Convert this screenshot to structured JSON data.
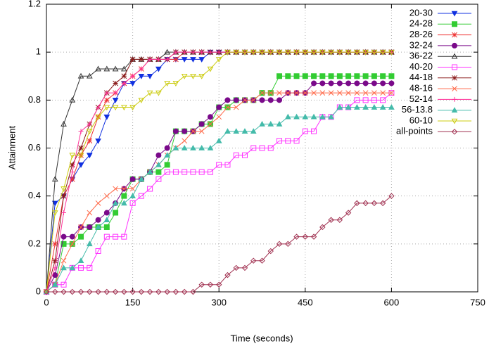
{
  "chart_data": {
    "type": "line",
    "xlabel": "Time (seconds)",
    "ylabel": "Attainment",
    "xlim": [
      0,
      750
    ],
    "ylim": [
      0,
      1.2
    ],
    "xticks": [
      0,
      150,
      300,
      450,
      600,
      750
    ],
    "yticks": [
      0,
      0.2,
      0.4,
      0.6,
      0.8,
      1,
      1.2
    ],
    "grid": true,
    "legend": "top-right",
    "x": [
      0,
      15,
      30,
      45,
      60,
      75,
      90,
      105,
      120,
      135,
      150,
      165,
      180,
      195,
      210,
      225,
      240,
      255,
      270,
      285,
      300,
      315,
      330,
      345,
      360,
      375,
      390,
      405,
      420,
      435,
      450,
      465,
      480,
      495,
      510,
      525,
      540,
      555,
      570,
      585,
      600
    ],
    "series": [
      {
        "name": "20-30",
        "color": "#1030e0",
        "marker": "triangle-down-filled",
        "values": [
          0,
          0.37,
          0.4,
          0.47,
          0.53,
          0.57,
          0.63,
          0.73,
          0.8,
          0.87,
          0.87,
          0.9,
          0.9,
          0.93,
          0.97,
          0.97,
          0.97,
          0.97,
          0.97,
          1,
          1,
          1,
          1,
          1,
          1,
          1,
          1,
          1,
          1,
          1,
          1,
          1,
          1,
          1,
          1,
          1,
          1,
          1,
          1,
          1,
          1
        ]
      },
      {
        "name": "24-28",
        "color": "#33cc33",
        "marker": "square-filled",
        "values": [
          0,
          0.03,
          0.2,
          0.2,
          0.23,
          0.27,
          0.27,
          0.27,
          0.33,
          0.4,
          0.47,
          0.47,
          0.5,
          0.5,
          0.53,
          0.67,
          0.67,
          0.67,
          0.7,
          0.7,
          0.77,
          0.77,
          0.8,
          0.8,
          0.8,
          0.83,
          0.83,
          0.9,
          0.9,
          0.9,
          0.9,
          0.9,
          0.9,
          0.9,
          0.9,
          0.9,
          0.9,
          0.9,
          0.9,
          0.9,
          0.9
        ]
      },
      {
        "name": "28-26",
        "color": "#ee3333",
        "marker": "star",
        "values": [
          0,
          0.2,
          0.4,
          0.47,
          0.57,
          0.63,
          0.73,
          0.8,
          0.83,
          0.87,
          0.9,
          0.93,
          0.97,
          0.97,
          0.97,
          0.97,
          1,
          1,
          1,
          1,
          1,
          1,
          1,
          1,
          1,
          1,
          1,
          1,
          1,
          1,
          1,
          1,
          1,
          1,
          1,
          1,
          1,
          1,
          1,
          1,
          1
        ]
      },
      {
        "name": "32-24",
        "color": "#7a0a8a",
        "marker": "circle-filled",
        "values": [
          0,
          0.07,
          0.23,
          0.23,
          0.27,
          0.27,
          0.3,
          0.33,
          0.37,
          0.43,
          0.47,
          0.47,
          0.5,
          0.57,
          0.6,
          0.67,
          0.67,
          0.67,
          0.7,
          0.73,
          0.77,
          0.8,
          0.8,
          0.8,
          0.8,
          0.8,
          0.8,
          0.8,
          0.83,
          0.83,
          0.83,
          0.87,
          0.87,
          0.87,
          0.87,
          0.87,
          0.87,
          0.87,
          0.87,
          0.87,
          0.87
        ]
      },
      {
        "name": "36-22",
        "color": "#333333",
        "marker": "triangle-up-open",
        "values": [
          0,
          0.47,
          0.7,
          0.8,
          0.9,
          0.9,
          0.93,
          0.93,
          0.93,
          0.93,
          0.97,
          0.97,
          0.97,
          0.97,
          1,
          1,
          1,
          1,
          1,
          1,
          1,
          1,
          1,
          1,
          1,
          1,
          1,
          1,
          1,
          1,
          1,
          1,
          1,
          1,
          1,
          1,
          1,
          1,
          1,
          1,
          1
        ]
      },
      {
        "name": "40-20",
        "color": "#ff33ff",
        "marker": "square-open",
        "values": [
          0,
          0.03,
          0.03,
          0.1,
          0.1,
          0.1,
          0.17,
          0.23,
          0.23,
          0.23,
          0.37,
          0.4,
          0.43,
          0.47,
          0.5,
          0.5,
          0.5,
          0.5,
          0.5,
          0.5,
          0.53,
          0.53,
          0.57,
          0.57,
          0.6,
          0.6,
          0.6,
          0.63,
          0.63,
          0.63,
          0.67,
          0.67,
          0.73,
          0.73,
          0.77,
          0.77,
          0.8,
          0.8,
          0.8,
          0.8,
          0.83
        ]
      },
      {
        "name": "44-18",
        "color": "#8a1a1a",
        "marker": "star",
        "values": [
          0,
          0.13,
          0.4,
          0.53,
          0.6,
          0.7,
          0.77,
          0.83,
          0.87,
          0.9,
          0.97,
          0.97,
          0.97,
          0.97,
          0.97,
          1,
          1,
          1,
          1,
          1,
          1,
          1,
          1,
          1,
          1,
          1,
          1,
          1,
          1,
          1,
          1,
          1,
          1,
          1,
          1,
          1,
          1,
          1,
          1,
          1,
          1
        ]
      },
      {
        "name": "48-16",
        "color": "#ff6a4a",
        "marker": "cross",
        "values": [
          0,
          0.03,
          0.13,
          0.2,
          0.27,
          0.33,
          0.37,
          0.4,
          0.43,
          0.43,
          0.43,
          0.47,
          0.5,
          0.53,
          0.57,
          0.6,
          0.63,
          0.67,
          0.67,
          0.7,
          0.73,
          0.77,
          0.77,
          0.8,
          0.8,
          0.83,
          0.83,
          0.83,
          0.83,
          0.83,
          0.83,
          0.83,
          0.83,
          0.83,
          0.83,
          0.83,
          0.83,
          0.83,
          0.83,
          0.83,
          0.83
        ]
      },
      {
        "name": "52-14",
        "color": "#ff3399",
        "marker": "plus",
        "values": [
          0,
          0.1,
          0.33,
          0.5,
          0.67,
          0.7,
          0.77,
          0.83,
          0.83,
          0.87,
          0.9,
          0.93,
          0.97,
          0.97,
          0.97,
          1,
          1,
          1,
          1,
          1,
          1,
          1,
          1,
          1,
          1,
          1,
          1,
          1,
          1,
          1,
          1,
          1,
          1,
          1,
          1,
          1,
          1,
          1,
          1,
          1,
          1
        ]
      },
      {
        "name": "56-13.8",
        "color": "#44bbaa",
        "marker": "triangle-up-filled",
        "values": [
          0,
          0.03,
          0.1,
          0.1,
          0.13,
          0.2,
          0.27,
          0.3,
          0.37,
          0.37,
          0.4,
          0.47,
          0.5,
          0.53,
          0.57,
          0.6,
          0.6,
          0.6,
          0.6,
          0.6,
          0.63,
          0.67,
          0.67,
          0.67,
          0.67,
          0.7,
          0.7,
          0.7,
          0.73,
          0.73,
          0.73,
          0.73,
          0.73,
          0.73,
          0.77,
          0.77,
          0.77,
          0.77,
          0.77,
          0.77,
          0.77
        ]
      },
      {
        "name": "60-10",
        "color": "#cccc11",
        "marker": "triangle-down-open",
        "values": [
          0,
          0.33,
          0.43,
          0.57,
          0.57,
          0.67,
          0.73,
          0.77,
          0.77,
          0.77,
          0.77,
          0.8,
          0.83,
          0.83,
          0.87,
          0.87,
          0.9,
          0.9,
          0.9,
          0.93,
          0.97,
          1,
          1,
          1,
          1,
          1,
          1,
          1,
          1,
          1,
          1,
          1,
          1,
          1,
          1,
          1,
          1,
          1,
          1,
          1,
          1
        ]
      },
      {
        "name": "all-points",
        "color": "#a03050",
        "marker": "diamond-open",
        "values": [
          0,
          0,
          0,
          0,
          0,
          0,
          0,
          0,
          0,
          0,
          0,
          0,
          0,
          0,
          0,
          0,
          0,
          0,
          0.03,
          0.03,
          0.03,
          0.07,
          0.1,
          0.1,
          0.13,
          0.13,
          0.17,
          0.2,
          0.2,
          0.23,
          0.23,
          0.23,
          0.27,
          0.3,
          0.3,
          0.33,
          0.37,
          0.37,
          0.37,
          0.37,
          0.4
        ]
      }
    ]
  }
}
